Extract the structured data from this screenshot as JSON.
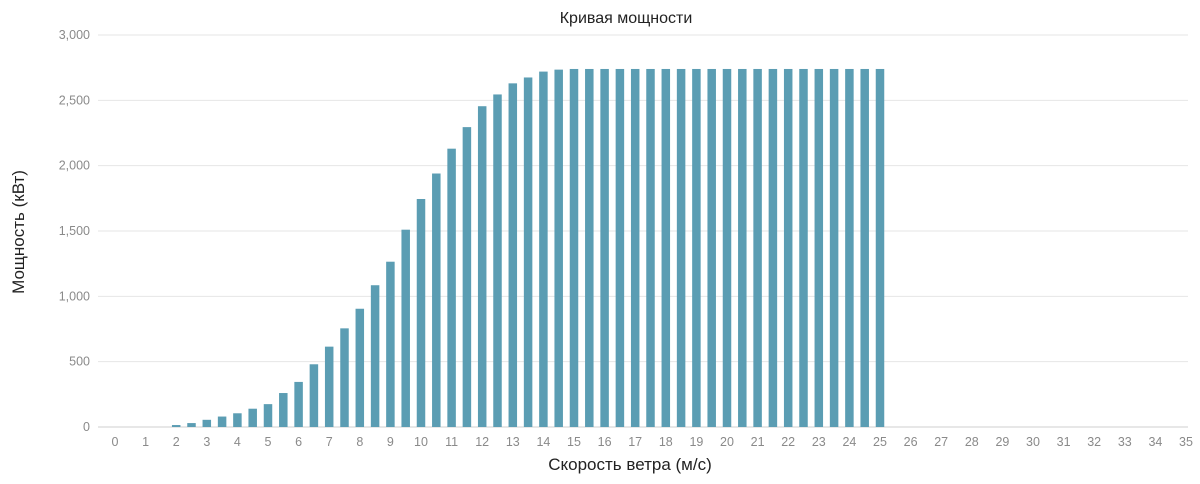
{
  "chart_data": {
    "type": "bar",
    "title": "Кривая мощности",
    "xlabel": "Скорость ветра (м/с)",
    "ylabel": "Мощность (кВт)",
    "ylim": [
      0,
      3000
    ],
    "yticks": [
      "0",
      "500",
      "1,000",
      "1,500",
      "2,000",
      "2,500",
      "3,000"
    ],
    "ytick_values": [
      0,
      500,
      1000,
      1500,
      2000,
      2500,
      3000
    ],
    "grid": true,
    "legend": "none",
    "bar_color": "#5b9db3",
    "x_tick_labels": [
      "0",
      "1",
      "2",
      "3",
      "4",
      "5",
      "6",
      "7",
      "8",
      "9",
      "10",
      "11",
      "12",
      "13",
      "14",
      "15",
      "16",
      "17",
      "18",
      "19",
      "20",
      "21",
      "22",
      "23",
      "24",
      "25",
      "26",
      "27",
      "28",
      "29",
      "30",
      "31",
      "32",
      "33",
      "34",
      "35"
    ],
    "x": [
      0,
      0.5,
      1,
      1.5,
      2,
      2.5,
      3,
      3.5,
      4,
      4.5,
      5,
      5.5,
      6,
      6.5,
      7,
      7.5,
      8,
      8.5,
      9,
      9.5,
      10,
      10.5,
      11,
      11.5,
      12,
      12.5,
      13,
      13.5,
      14,
      14.5,
      15,
      15.5,
      16,
      16.5,
      17,
      17.5,
      18,
      18.5,
      19,
      19.5,
      20,
      20.5,
      21,
      21.5,
      22,
      22.5,
      23,
      23.5,
      24,
      24.5,
      25,
      25.5,
      26,
      26.5,
      27,
      27.5,
      28,
      28.5,
      29,
      29.5,
      30,
      30.5,
      31,
      31.5,
      32,
      32.5,
      33,
      33.5,
      34,
      34.5,
      35
    ],
    "values": [
      0,
      0,
      0,
      0,
      15,
      30,
      55,
      80,
      105,
      140,
      175,
      260,
      345,
      480,
      615,
      755,
      905,
      1085,
      1265,
      1510,
      1745,
      1940,
      2130,
      2295,
      2455,
      2545,
      2630,
      2675,
      2720,
      2735,
      2740,
      2740,
      2740,
      2740,
      2740,
      2740,
      2740,
      2740,
      2740,
      2740,
      2740,
      2740,
      2740,
      2740,
      2740,
      2740,
      2740,
      2740,
      2740,
      2740,
      2740,
      0,
      0,
      0,
      0,
      0,
      0,
      0,
      0,
      0,
      0,
      0,
      0,
      0,
      0,
      0,
      0,
      0,
      0,
      0,
      0
    ]
  }
}
